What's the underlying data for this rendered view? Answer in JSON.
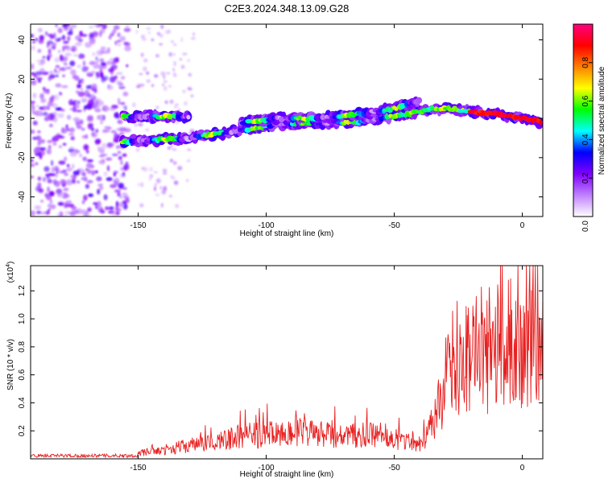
{
  "title": "C2E3.2024.348.13.09.G28",
  "chart_data": [
    {
      "type": "heatmap",
      "xlabel": "Height of straight line (km)",
      "ylabel": "Frequency (Hz)",
      "xlim": [
        -192,
        8
      ],
      "ylim": [
        -50,
        48
      ],
      "x_ticks": [
        -150,
        -100,
        -50,
        0
      ],
      "y_ticks": [
        -40,
        -20,
        0,
        20,
        40
      ],
      "grid": false,
      "colorbar": {
        "label": "Normalized spectral amplitude",
        "range": [
          0,
          1
        ],
        "ticks": [
          0.0,
          0.2,
          0.4,
          0.6,
          0.8
        ],
        "colormap": [
          "#ffffff",
          "#c080ff",
          "#8000ff",
          "#0000ff",
          "#00ffff",
          "#00ff00",
          "#ffff00",
          "#ff8000",
          "#ff0000",
          "#ff0080"
        ]
      },
      "ridge": {
        "segments": [
          {
            "x": [
              -156,
              -130
            ],
            "y": [
              1,
              1
            ]
          },
          {
            "x": [
              -156,
              -130,
              -110,
              -95,
              -80,
              -65,
              -50,
              -42,
              -35,
              -28,
              -18,
              -8,
              0,
              8
            ],
            "y": [
              -12,
              -10,
              -6,
              -3,
              -2,
              -2,
              1,
              3,
              5,
              5,
              3,
              2,
              0,
              -2
            ]
          },
          {
            "x": [
              -110,
              -95,
              -80,
              -65,
              -50,
              -40
            ],
            "y": [
              -2,
              0,
              0,
              2,
              5,
              9
            ]
          }
        ],
        "noise_region_x": [
          -192,
          -154
        ],
        "scattered_region_x": [
          -152,
          -128
        ]
      }
    },
    {
      "type": "line",
      "xlabel": "Height of straight line (km)",
      "ylabel": "SNR (10 * v/v)",
      "y_multiplier": "(x10",
      "y_multiplier_exp": "4",
      "y_multiplier_close": ")",
      "xlim": [
        -192,
        8
      ],
      "ylim": [
        0,
        1.38
      ],
      "x_ticks": [
        -150,
        -100,
        -50,
        0
      ],
      "y_ticks": [
        0.2,
        0.4,
        0.6,
        0.8,
        1.0,
        1.2
      ],
      "color": "#e82020",
      "grid": false,
      "envelope": {
        "x": [
          -192,
          -160,
          -150,
          -140,
          -130,
          -120,
          -110,
          -100,
          -90,
          -80,
          -70,
          -60,
          -50,
          -45,
          -40,
          -35,
          -30,
          -25,
          -20,
          -15,
          -10,
          -5,
          0,
          5,
          8
        ],
        "y": [
          0.02,
          0.03,
          0.05,
          0.08,
          0.12,
          0.15,
          0.2,
          0.22,
          0.24,
          0.22,
          0.2,
          0.21,
          0.18,
          0.16,
          0.14,
          0.3,
          0.7,
          0.85,
          0.95,
          0.9,
          0.92,
          0.95,
          1.0,
          1.05,
          1.05
        ]
      }
    }
  ]
}
